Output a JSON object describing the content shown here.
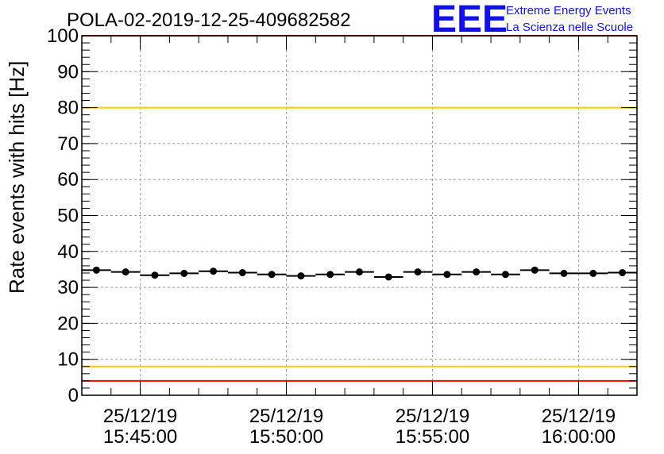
{
  "chart_data": {
    "type": "scatter",
    "title": "POLA-02-2019-12-25-409682582",
    "xlabel": "",
    "ylabel": "Rate events with hits [Hz]",
    "ylim": [
      0,
      100
    ],
    "xlim": [
      "2019-12-25 15:43:00",
      "2019-12-25 16:02:00"
    ],
    "y_ticks": [
      "0",
      "10",
      "20",
      "30",
      "40",
      "50",
      "60",
      "70",
      "80",
      "90",
      "100"
    ],
    "x_ticks": [
      {
        "date": "25/12/19",
        "time": "15:45:00"
      },
      {
        "date": "25/12/19",
        "time": "15:50:00"
      },
      {
        "date": "25/12/19",
        "time": "15:55:00"
      },
      {
        "date": "25/12/19",
        "time": "16:00:00"
      }
    ],
    "grid": true,
    "series": [
      {
        "x": [
          "15:43:30",
          "15:44:30",
          "15:45:30",
          "15:46:30",
          "15:47:30",
          "15:48:30",
          "15:49:30",
          "15:50:30",
          "15:51:30",
          "15:52:30",
          "15:53:30",
          "15:54:30",
          "15:55:30",
          "15:56:30",
          "15:57:30",
          "15:58:30",
          "15:59:30",
          "16:00:30",
          "16:01:30"
        ],
        "values": [
          34.8,
          34.3,
          33.4,
          33.9,
          34.5,
          34.1,
          33.6,
          33.2,
          33.6,
          34.3,
          32.9,
          34.3,
          33.6,
          34.3,
          33.6,
          34.8,
          33.9,
          33.9,
          34.1
        ],
        "color": "#000000"
      }
    ],
    "reference_lines": [
      {
        "value": 100,
        "color": "#ff0000"
      },
      {
        "value": 80,
        "color": "#ffcc00"
      },
      {
        "value": 8,
        "color": "#ffcc00"
      },
      {
        "value": 4,
        "color": "#ff0000"
      }
    ]
  },
  "logo": {
    "mark": "EEE",
    "line1": "Extreme Energy Events",
    "line2": "La Scienza nelle Scuole",
    "color": "#1010ee"
  }
}
